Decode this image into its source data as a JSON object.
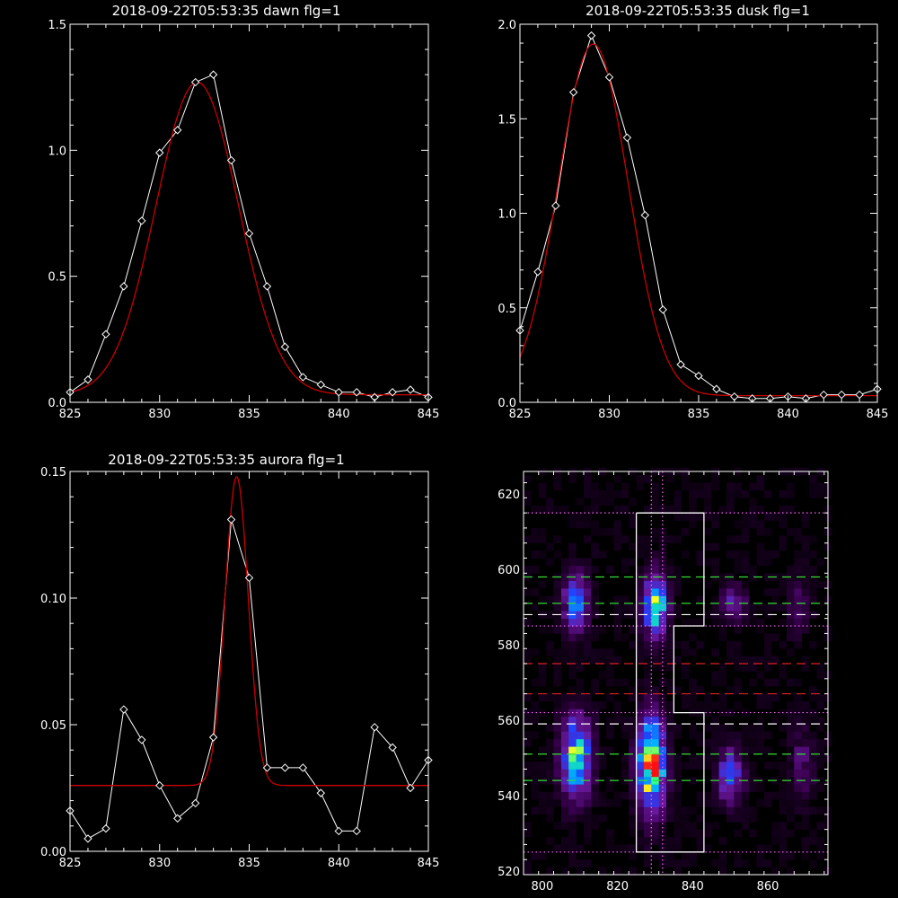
{
  "chart_data": [
    {
      "type": "line",
      "title": "2018-09-22T05:53:35 dawn flg=1",
      "xlim": [
        825,
        845
      ],
      "ylim": [
        0,
        1.5
      ],
      "xticks": [
        825,
        830,
        835,
        840,
        845
      ],
      "yticks": [
        0.0,
        0.5,
        1.0,
        1.5
      ],
      "ytick_labels": [
        "0.0",
        "0.5",
        "1.0",
        "1.5"
      ],
      "series": [
        {
          "role": "data",
          "color": "#ffffff",
          "marker": "diamond",
          "x": [
            825,
            826,
            827,
            828,
            829,
            830,
            831,
            832,
            833,
            834,
            835,
            836,
            837,
            838,
            839,
            840,
            841,
            842,
            843,
            844,
            845
          ],
          "y": [
            0.04,
            0.09,
            0.27,
            0.46,
            0.72,
            0.99,
            1.08,
            1.27,
            1.3,
            0.96,
            0.67,
            0.46,
            0.22,
            0.1,
            0.07,
            0.04,
            0.04,
            0.02,
            0.04,
            0.05,
            0.02
          ]
        },
        {
          "role": "fit",
          "color": "#cc0000",
          "fit": {
            "kind": "gauss",
            "center": 832.1,
            "sigma": 2.3,
            "amplitude": 1.24,
            "base": 0.03
          }
        }
      ]
    },
    {
      "type": "line",
      "title": "2018-09-22T05:53:35 dusk flg=1",
      "xlim": [
        825,
        845
      ],
      "ylim": [
        0,
        2.0
      ],
      "xticks": [
        825,
        830,
        835,
        840,
        845
      ],
      "yticks": [
        0.0,
        0.5,
        1.0,
        1.5,
        2.0
      ],
      "ytick_labels": [
        "0.0",
        "0.5",
        "1.0",
        "1.5",
        "2.0"
      ],
      "series": [
        {
          "role": "data",
          "color": "#ffffff",
          "marker": "diamond",
          "x": [
            825,
            826,
            827,
            828,
            829,
            830,
            831,
            832,
            833,
            834,
            835,
            836,
            837,
            838,
            839,
            840,
            841,
            842,
            843,
            844,
            845
          ],
          "y": [
            0.38,
            0.69,
            1.04,
            1.64,
            1.94,
            1.72,
            1.4,
            0.99,
            0.49,
            0.2,
            0.14,
            0.07,
            0.03,
            0.02,
            0.02,
            0.03,
            0.02,
            0.04,
            0.04,
            0.04,
            0.07
          ]
        },
        {
          "role": "fit",
          "color": "#cc0000",
          "fit": {
            "kind": "gauss",
            "center": 829.1,
            "sigma": 1.95,
            "amplitude": 1.86,
            "base": 0.035
          }
        }
      ]
    },
    {
      "type": "line",
      "title": "2018-09-22T05:53:35 aurora flg=1",
      "xlim": [
        825,
        845
      ],
      "ylim": [
        0,
        0.15
      ],
      "xticks": [
        825,
        830,
        835,
        840,
        845
      ],
      "yticks": [
        0.0,
        0.05,
        0.1,
        0.15
      ],
      "ytick_labels": [
        "0.00",
        "0.05",
        "0.10",
        "0.15"
      ],
      "series": [
        {
          "role": "data",
          "color": "#ffffff",
          "marker": "diamond",
          "x": [
            825,
            826,
            827,
            828,
            829,
            830,
            831,
            832,
            833,
            834,
            835,
            836,
            837,
            838,
            839,
            840,
            841,
            842,
            843,
            844,
            845
          ],
          "y": [
            0.016,
            0.005,
            0.009,
            0.056,
            0.044,
            0.026,
            0.013,
            0.019,
            0.045,
            0.131,
            0.108,
            0.033,
            0.033,
            0.033,
            0.023,
            0.008,
            0.008,
            0.049,
            0.041,
            0.025,
            0.036
          ]
        },
        {
          "role": "fit",
          "color": "#cc0000",
          "fit": {
            "kind": "gauss",
            "center": 834.3,
            "sigma": 0.65,
            "amplitude": 0.122,
            "base": 0.026
          }
        }
      ]
    },
    {
      "type": "heatmap",
      "xlim": [
        795,
        876
      ],
      "ylim": [
        519,
        626
      ],
      "xticks": [
        800,
        820,
        840,
        860
      ],
      "yticks": [
        520,
        540,
        560,
        580,
        600,
        620
      ],
      "colormap": [
        "#000000",
        "#3a0050",
        "#6a1aa0",
        "#2040ff",
        "#00b0ff",
        "#20ff90",
        "#ffff20",
        "#ff1010"
      ],
      "blobs": [
        {
          "x": 809,
          "y": 550,
          "sx": 2.6,
          "sy": 7.0,
          "peak": 0.7
        },
        {
          "x": 809,
          "y": 591,
          "sx": 2.3,
          "sy": 5.0,
          "peak": 0.48
        },
        {
          "x": 829,
          "y": 548,
          "sx": 2.4,
          "sy": 8.0,
          "peak": 0.95
        },
        {
          "x": 830,
          "y": 591,
          "sx": 2.1,
          "sy": 5.5,
          "peak": 0.72
        },
        {
          "x": 850,
          "y": 545,
          "sx": 2.2,
          "sy": 5.0,
          "peak": 0.42
        },
        {
          "x": 851,
          "y": 591,
          "sx": 2.0,
          "sy": 3.0,
          "peak": 0.3
        },
        {
          "x": 869,
          "y": 548,
          "sx": 2.0,
          "sy": 6.0,
          "peak": 0.18
        },
        {
          "x": 868,
          "y": 590,
          "sx": 2.0,
          "sy": 5.0,
          "peak": 0.14
        }
      ],
      "boxes": [
        {
          "color": "#ffffff",
          "dash": "solid",
          "points": [
            [
              825,
              615
            ],
            [
              843,
              615
            ],
            [
              843,
              585
            ],
            [
              835,
              585
            ],
            [
              835,
              562
            ],
            [
              843,
              562
            ],
            [
              843,
              525
            ],
            [
              825,
              525
            ],
            [
              825,
              615
            ]
          ]
        }
      ],
      "hlines": [
        {
          "y": 615,
          "color": "#ff66ff",
          "dash": "dotted"
        },
        {
          "y": 598,
          "color": "#33dd33",
          "dash": "dashed"
        },
        {
          "y": 591,
          "color": "#33dd33",
          "dash": "dashed"
        },
        {
          "y": 588,
          "color": "#ffffff",
          "dash": "dashed"
        },
        {
          "y": 585,
          "color": "#ff66ff",
          "dash": "dotted"
        },
        {
          "y": 575,
          "color": "#dd2222",
          "dash": "dashed"
        },
        {
          "y": 567,
          "color": "#dd2222",
          "dash": "dashed"
        },
        {
          "y": 562,
          "color": "#ff66ff",
          "dash": "dotted"
        },
        {
          "y": 559,
          "color": "#ffffff",
          "dash": "dashed"
        },
        {
          "y": 551,
          "color": "#33dd33",
          "dash": "dashed"
        },
        {
          "y": 544,
          "color": "#33dd33",
          "dash": "dashed"
        },
        {
          "y": 525,
          "color": "#ff66ff",
          "dash": "dotted"
        }
      ],
      "vlines": [
        {
          "x": 829,
          "color": "#ff66ff",
          "dash": "dotted"
        },
        {
          "x": 832,
          "color": "#ff66ff",
          "dash": "dotted"
        }
      ]
    }
  ]
}
